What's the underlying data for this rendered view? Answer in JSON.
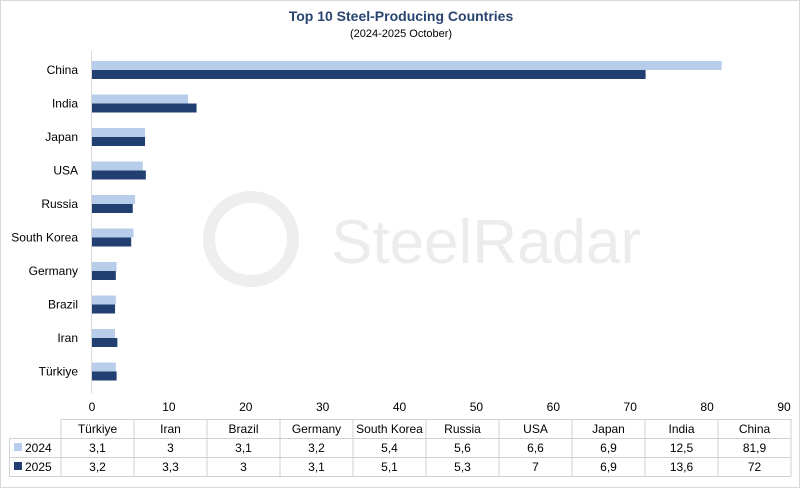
{
  "chart_data": {
    "type": "bar",
    "orientation": "horizontal",
    "title": "Top 10 Steel-Producing Countries",
    "subtitle": "(2024-2025 October)",
    "categories": [
      "Türkiye",
      "Iran",
      "Brazil",
      "Germany",
      "South Korea",
      "Russia",
      "USA",
      "Japan",
      "India",
      "China"
    ],
    "series": [
      {
        "name": "2024",
        "color": "#b8cde9",
        "values": [
          3.1,
          3,
          3.1,
          3.2,
          5.4,
          5.6,
          6.6,
          6.9,
          12.5,
          81.9
        ],
        "labels": [
          "3,1",
          "3",
          "3,1",
          "3,2",
          "5,4",
          "5,6",
          "6,6",
          "6,9",
          "12,5",
          "81,9"
        ]
      },
      {
        "name": "2025",
        "color": "#213f70",
        "values": [
          3.2,
          3.3,
          3,
          3.1,
          5.1,
          5.3,
          7,
          6.9,
          13.6,
          72
        ],
        "labels": [
          "3,2",
          "3,3",
          "3",
          "3,1",
          "5,1",
          "5,3",
          "7",
          "6,9",
          "13,6",
          "72"
        ]
      }
    ],
    "xlim": [
      0,
      90
    ],
    "xticks": [
      0,
      10,
      20,
      30,
      40,
      50,
      60,
      70,
      80,
      90
    ],
    "grid": false,
    "legend": "data-table-below",
    "watermark": "SteelRadar"
  }
}
